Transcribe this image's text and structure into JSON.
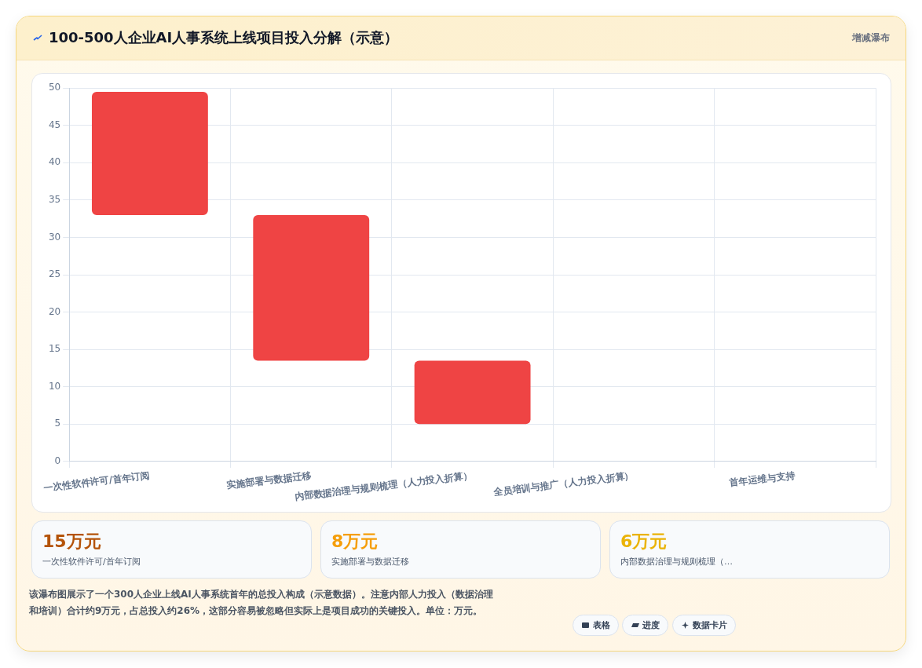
{
  "chart_data": {
    "type": "bar",
    "title": "100-500人企业AI人事系统上线项目投入分解（示意）",
    "categories": [
      "一次性软件许可/首年订阅",
      "实施部署与数据迁移",
      "内部数据治理与规则梳理（人力投入折算）",
      "全员培训与推广（人力投入折算）",
      "首年运维与支持"
    ],
    "values": [
      16.5,
      19.5,
      8.5,
      null,
      null
    ],
    "base": [
      33,
      13.5,
      5,
      null,
      null
    ],
    "color": "#ef4444",
    "ylim": [
      0,
      50
    ],
    "yticks": [
      0,
      5,
      10,
      15,
      20,
      25,
      30,
      35,
      40,
      45,
      50
    ],
    "grid": true,
    "annotations": [
      "增减瀑布",
      "15万元",
      "一次性软件许可/首年订阅",
      "8万元",
      "实施部署与数据迁移",
      "6万元",
      "内部数据治理与规则梳理（…",
      "该瀑布图展示了一个300人企业上线AI人事系统首年的总投入构成（示意数据）。注意内部人力投入（数据治理和培训）合计约9万元，占总投入约26%，这部分容易被忽略但实际上是项目成功的关键投入。单位：万元。",
      "表格",
      "进度",
      "数据卡片"
    ]
  }
}
